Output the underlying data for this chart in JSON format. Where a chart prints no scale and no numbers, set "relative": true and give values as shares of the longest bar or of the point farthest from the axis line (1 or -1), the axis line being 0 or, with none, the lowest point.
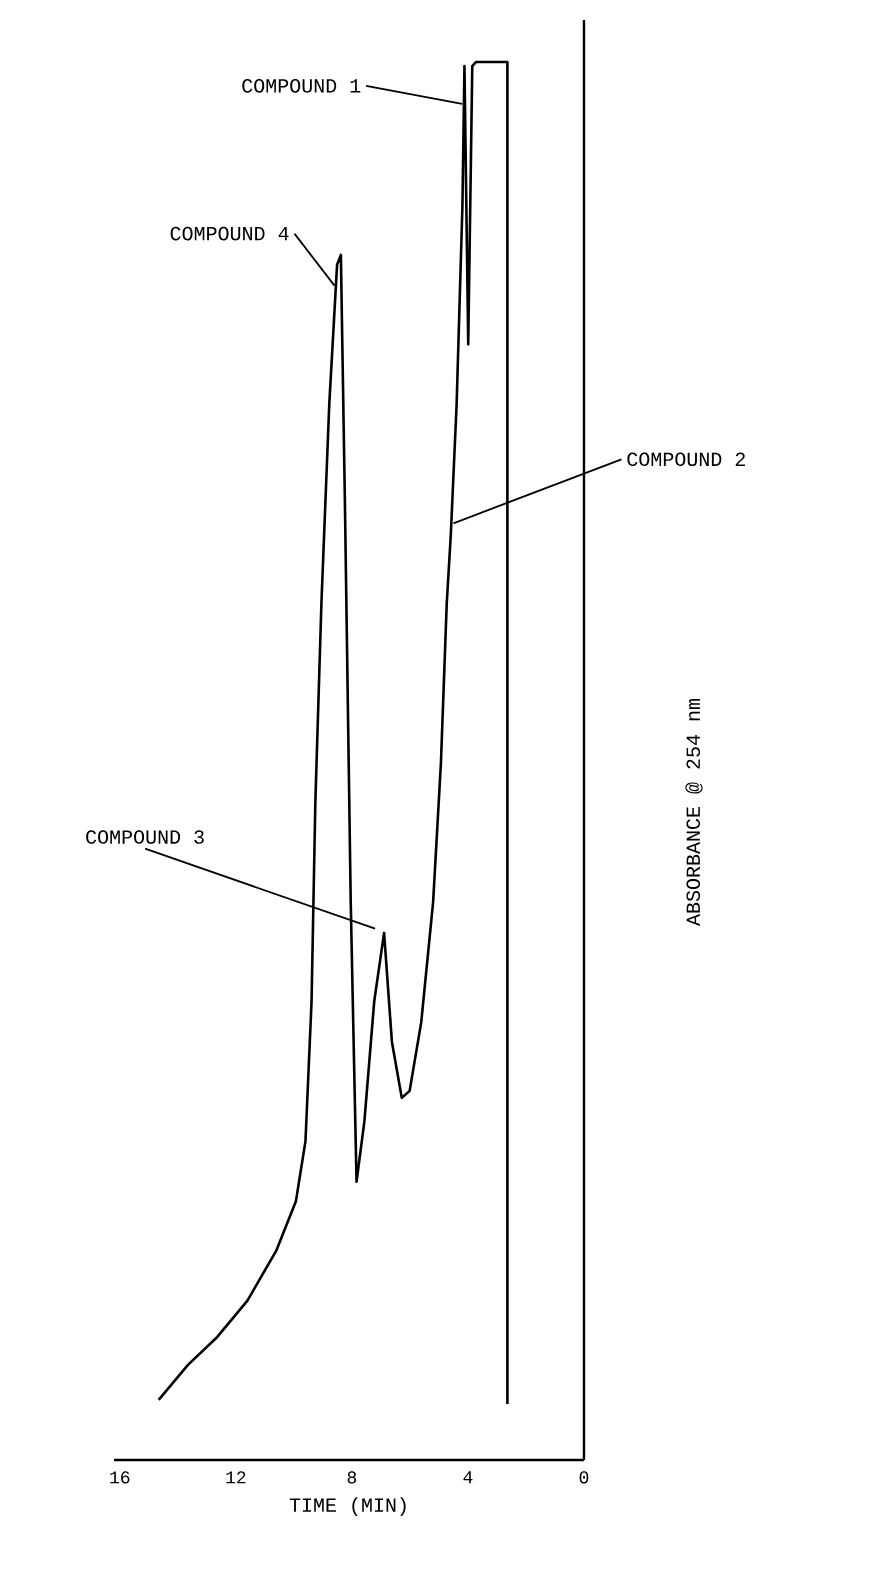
{
  "chart_data": {
    "type": "line",
    "relative": true,
    "xlabel": "TIME (MIN)",
    "ylabel": "ABSORBANCE @ 254 nm",
    "xlim": [
      16.2,
      0
    ],
    "xticks": [
      16,
      12,
      8,
      4,
      0
    ],
    "x": [
      14.66,
      13.65,
      12.64,
      11.6,
      10.6,
      9.93,
      9.6,
      9.39,
      9.26,
      9.05,
      8.78,
      8.51,
      8.38,
      8.24,
      8.04,
      7.84,
      7.57,
      7.23,
      6.89,
      6.62,
      6.28,
      6.01,
      5.61,
      5.2,
      4.93,
      4.73,
      4.59,
      4.39,
      4.19,
      4.12,
      3.99,
      3.85,
      3.72,
      2.64,
      2.64
    ],
    "series": [
      {
        "color": "#000000",
        "values": [
          0.043,
          0.068,
          0.088,
          0.114,
          0.15,
          0.185,
          0.228,
          0.328,
          0.47,
          0.613,
          0.755,
          0.855,
          0.862,
          0.684,
          0.399,
          0.199,
          0.242,
          0.328,
          0.377,
          0.299,
          0.259,
          0.264,
          0.313,
          0.399,
          0.499,
          0.613,
          0.662,
          0.755,
          0.897,
          0.997,
          0.798,
          0.997,
          1,
          1,
          0.04
        ]
      }
    ],
    "annotations": [
      {
        "text": "COMPOUND 1",
        "x": 4.2,
        "y": 0.97
      },
      {
        "text": "COMPOUND 2",
        "x": 4.5,
        "y": 0.67
      },
      {
        "text": "COMPOUND 3",
        "x": 7.2,
        "y": 0.38
      },
      {
        "text": "COMPOUND 4",
        "x": 8.6,
        "y": 0.84
      }
    ]
  }
}
